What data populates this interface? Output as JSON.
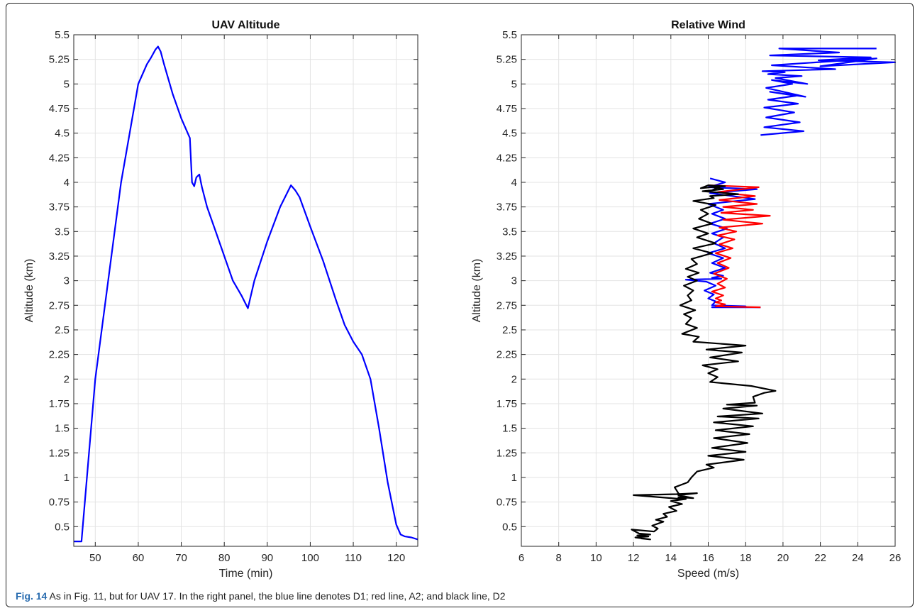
{
  "caption": {
    "label": "Fig. 14",
    "text": "As in Fig. 11, but for UAV 17. In the right panel, the blue line denotes D1; red line, A2; and black line, D2"
  },
  "chart_data": [
    {
      "type": "line",
      "title": "UAV Altitude",
      "xlabel": "Time (min)",
      "ylabel": "Altitude (km)",
      "xlim": [
        45,
        125
      ],
      "ylim": [
        0.3,
        5.5
      ],
      "grid": true,
      "xticks": [
        50,
        60,
        70,
        80,
        90,
        100,
        110,
        120
      ],
      "yticks": [
        0.5,
        0.75,
        1,
        1.25,
        1.5,
        1.75,
        2,
        2.25,
        2.5,
        2.75,
        3,
        3.25,
        3.5,
        3.75,
        4,
        4.25,
        4.5,
        4.75,
        5,
        5.25,
        5.5
      ],
      "ytick_labels": [
        "0.5",
        "0.75",
        "1",
        "1.25",
        "1.5",
        "1.75",
        "2",
        "2.25",
        "2.5",
        "2.75",
        "3",
        "3.25",
        "3.5",
        "3.75",
        "4",
        "4.25",
        "4.5",
        "4.75",
        "5",
        "5.25",
        "5.5"
      ],
      "series": [
        {
          "color": "#0000ff",
          "x": [
            45,
            46.8,
            50,
            53,
            56,
            58,
            60,
            61,
            62,
            63,
            64,
            64.6,
            65.2,
            66,
            68,
            70,
            72,
            72.5,
            73,
            73.5,
            74.2,
            74.8,
            76,
            78,
            80,
            82,
            84,
            85.5,
            87,
            90,
            93,
            95.5,
            96.5,
            97.5,
            100,
            103,
            106,
            108,
            110,
            112,
            114,
            116,
            118,
            120,
            121,
            122,
            123.5,
            125
          ],
          "y": [
            0.35,
            0.35,
            2.0,
            3.0,
            4.0,
            4.5,
            5.0,
            5.1,
            5.2,
            5.27,
            5.35,
            5.38,
            5.33,
            5.2,
            4.9,
            4.65,
            4.45,
            4.0,
            3.96,
            4.05,
            4.08,
            3.95,
            3.75,
            3.5,
            3.25,
            3.0,
            2.85,
            2.72,
            3.0,
            3.4,
            3.75,
            3.97,
            3.92,
            3.85,
            3.55,
            3.2,
            2.8,
            2.55,
            2.38,
            2.25,
            2.0,
            1.5,
            0.95,
            0.52,
            0.42,
            0.4,
            0.39,
            0.37
          ]
        }
      ]
    },
    {
      "type": "line",
      "title": "Relative Wind",
      "xlabel": "Speed (m/s)",
      "ylabel": "Altitude (km)",
      "xlim": [
        6,
        26
      ],
      "ylim": [
        0.3,
        5.5
      ],
      "grid": true,
      "xticks": [
        6,
        8,
        10,
        12,
        14,
        16,
        18,
        20,
        22,
        24,
        26
      ],
      "yticks": [
        0.5,
        0.75,
        1,
        1.25,
        1.5,
        1.75,
        2,
        2.25,
        2.5,
        2.75,
        3,
        3.25,
        3.5,
        3.75,
        4,
        4.25,
        4.5,
        4.75,
        5,
        5.25,
        5.5
      ],
      "ytick_labels": [
        "0.5",
        "0.75",
        "1",
        "1.25",
        "1.5",
        "1.75",
        "2",
        "2.25",
        "2.5",
        "2.75",
        "3",
        "3.25",
        "3.5",
        "3.75",
        "4",
        "4.25",
        "4.5",
        "4.75",
        "5",
        "5.25",
        "5.5"
      ],
      "series": [
        {
          "color": "#0000ff",
          "segments": [
            {
              "x": [
                18.8,
                21.1,
                19.0,
                20.9,
                19.1,
                20.6,
                19.0,
                20.8,
                19.2,
                20.7,
                19.3,
                21.2,
                19.1,
                20.5,
                19.4,
                21.3,
                19.6,
                21.0,
                19.2,
                20.1,
                18.9,
                22.8,
                19.4,
                25.0,
                22.0,
                26.0,
                21.9,
                24.7,
                19.3,
                23.0,
                19.8,
                25.0
              ],
              "y": [
                4.48,
                4.52,
                4.56,
                4.61,
                4.66,
                4.71,
                4.76,
                4.8,
                4.84,
                4.88,
                4.92,
                4.87,
                4.96,
                5.0,
                5.04,
                5.0,
                5.06,
                5.08,
                5.1,
                5.12,
                5.13,
                5.15,
                5.19,
                5.26,
                5.18,
                5.22,
                5.24,
                5.27,
                5.29,
                5.32,
                5.36,
                5.36
              ]
            },
            {
              "x": [
                16.1,
                16.3,
                16.9,
                16.0,
                18.6,
                16.1,
                18.5,
                16.0,
                16.8,
                16.2,
                16.9,
                16.1,
                17.0,
                16.2,
                16.8,
                16.3,
                16.9,
                16.0,
                16.8,
                16.2,
                16.9,
                16.1,
                16.8,
                16.2,
                16.7,
                14.8,
                15.9,
                16.4,
                15.8,
                16.3,
                16.0,
                16.4,
                16.2,
                18.0,
                16.2,
                18.8
              ],
              "y": [
                4.04,
                4.03,
                4.0,
                3.95,
                3.93,
                3.89,
                3.83,
                3.78,
                3.72,
                3.68,
                3.63,
                3.58,
                3.53,
                3.48,
                3.44,
                3.38,
                3.33,
                3.28,
                3.23,
                3.18,
                3.13,
                3.08,
                3.05,
                3.03,
                3.02,
                3.01,
                2.99,
                2.95,
                2.9,
                2.86,
                2.82,
                2.79,
                2.75,
                2.74,
                2.73,
                2.73
              ]
            }
          ]
        },
        {
          "color": "#ff0000",
          "segments": [
            {
              "x": [
                16.0,
                18.7,
                16.5,
                18.5,
                16.6,
                18.6,
                16.8,
                18.4,
                16.7,
                19.3,
                16.8,
                18.9,
                16.6,
                17.5,
                16.5,
                17.4,
                16.6,
                17.3,
                16.4,
                17.2,
                16.5,
                17.1,
                16.3,
                17.0,
                16.5,
                16.9,
                16.2,
                16.8,
                16.4,
                16.7,
                16.4,
                16.9,
                16.4,
                18.8
              ],
              "y": [
                3.97,
                3.95,
                3.9,
                3.86,
                3.82,
                3.78,
                3.75,
                3.72,
                3.69,
                3.66,
                3.62,
                3.58,
                3.54,
                3.5,
                3.46,
                3.42,
                3.37,
                3.33,
                3.28,
                3.23,
                3.18,
                3.13,
                3.07,
                3.02,
                2.97,
                2.93,
                2.89,
                2.85,
                2.82,
                2.8,
                2.78,
                2.76,
                2.74,
                2.73
              ]
            }
          ]
        },
        {
          "color": "#000000",
          "segments": [
            {
              "x": [
                12.4,
                12.9,
                12.1,
                12.8,
                12.2,
                12.9,
                12.3,
                11.9,
                13.1,
                13.3,
                13.0,
                13.6,
                13.2,
                13.8,
                13.6,
                14.3,
                13.9,
                14.6,
                14.0,
                14.8,
                14.4,
                15.2,
                14.4,
                15.4,
                14.3,
                12.0,
                14.6,
                14.2,
                14.9,
                15.1,
                15.4,
                16.3,
                15.9,
                17.9,
                16.0,
                18.0,
                16.2,
                18.1,
                16.3,
                18.2,
                16.4,
                18.4,
                16.3,
                18.7,
                16.5,
                18.9,
                16.8,
                18.6,
                17.0,
                18.5,
                18.4,
                19.0,
                19.6,
                18.3,
                16.1,
                16.5,
                16.0,
                16.5,
                15.7,
                17.6,
                16.1,
                17.8,
                15.9,
                18.0,
                15.2,
                15.5,
                14.6,
                15.4,
                14.8,
                15.1,
                14.7,
                15.3,
                14.5,
                15.1,
                14.9,
                15.2,
                14.7,
                15.4,
                14.9,
                15.5,
                14.8,
                15.4,
                15.1,
                16.2,
                15.2,
                16.4,
                15.4,
                16.0,
                15.2,
                16.2,
                15.5,
                16.0,
                15.6,
                16.4,
                15.2,
                16.3,
                16.1,
                17.6,
                15.7,
                16.8,
                16.3,
                16.9,
                16.0,
                15.6,
                16.7,
                16.2
              ],
              "y": [
                0.38,
                0.37,
                0.39,
                0.4,
                0.41,
                0.42,
                0.43,
                0.47,
                0.45,
                0.48,
                0.51,
                0.55,
                0.57,
                0.6,
                0.63,
                0.66,
                0.7,
                0.73,
                0.76,
                0.78,
                0.8,
                0.79,
                0.82,
                0.84,
                0.83,
                0.82,
                0.78,
                0.9,
                0.95,
                1.0,
                1.06,
                1.1,
                1.13,
                1.18,
                1.22,
                1.26,
                1.3,
                1.35,
                1.4,
                1.44,
                1.48,
                1.52,
                1.56,
                1.6,
                1.62,
                1.65,
                1.7,
                1.73,
                1.74,
                1.76,
                1.82,
                1.86,
                1.88,
                1.93,
                1.97,
                2.02,
                2.06,
                2.1,
                2.14,
                2.18,
                2.22,
                2.27,
                2.3,
                2.34,
                2.38,
                2.43,
                2.46,
                2.52,
                2.56,
                2.62,
                2.66,
                2.7,
                2.75,
                2.8,
                2.85,
                2.9,
                2.95,
                3.0,
                3.04,
                3.08,
                3.12,
                3.17,
                3.22,
                3.28,
                3.33,
                3.38,
                3.44,
                3.48,
                3.53,
                3.58,
                3.63,
                3.68,
                3.72,
                3.77,
                3.81,
                3.84,
                3.86,
                3.88,
                3.91,
                3.93,
                3.95,
                3.96,
                3.97,
                3.94,
                3.96,
                3.92
              ]
            }
          ]
        }
      ]
    }
  ]
}
